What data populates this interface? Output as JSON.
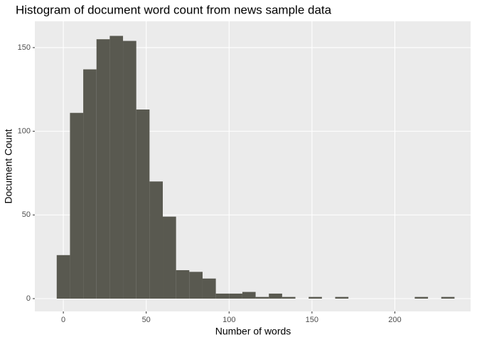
{
  "chart_data": {
    "type": "histogram",
    "title": "Histogram of document word count from news sample data",
    "x_label": "Number of words",
    "y_label": "Document Count",
    "bins": [
      -4,
      4,
      12,
      20,
      28,
      36,
      44,
      52,
      60,
      68,
      76,
      84,
      92,
      100,
      108,
      116,
      124,
      132,
      140,
      148,
      156,
      164,
      172,
      180,
      188,
      196,
      204,
      212,
      220,
      228,
      236
    ],
    "counts": [
      26,
      111,
      137,
      155,
      157,
      154,
      113,
      70,
      49,
      17,
      16,
      12,
      3,
      3,
      4,
      1,
      3,
      1,
      0,
      1,
      0,
      1,
      0,
      0,
      0,
      0,
      0,
      1,
      0,
      1
    ],
    "color": "#595950",
    "xlim": [
      -17.2,
      245.7
    ],
    "ylim": [
      -7.65,
      165.7
    ],
    "xticks": [
      0,
      50,
      100,
      150,
      200
    ],
    "yticks": [
      0,
      50,
      100,
      150
    ],
    "grid": true
  }
}
